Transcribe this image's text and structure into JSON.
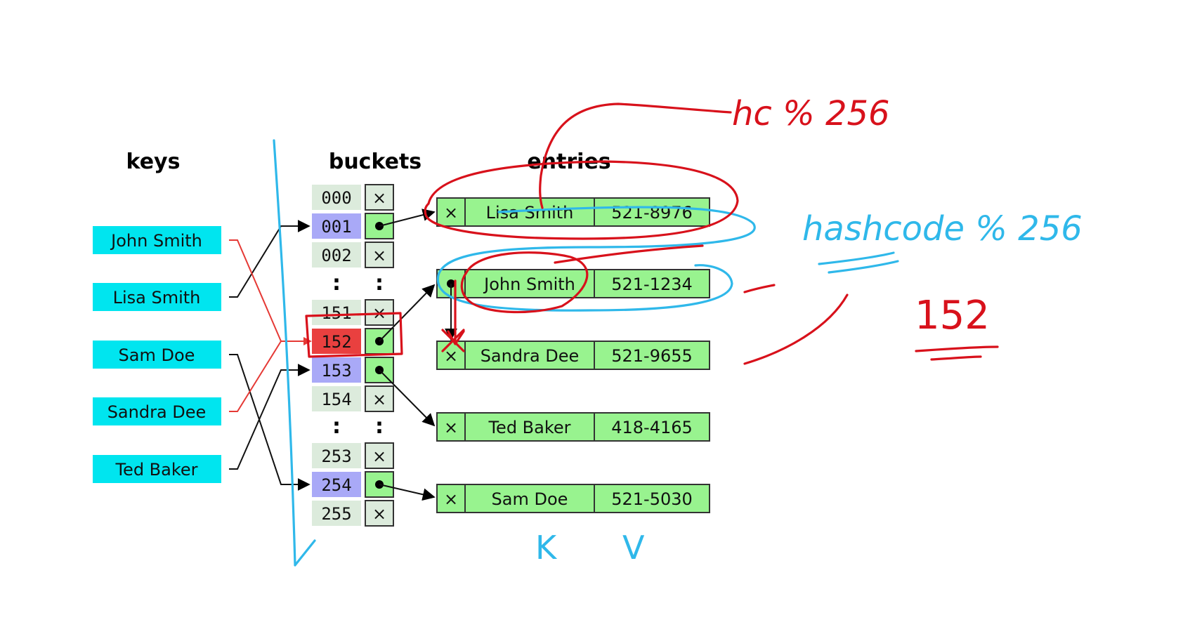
{
  "headers": {
    "keys": "keys",
    "buckets": "buckets",
    "entries": "entries"
  },
  "keys": [
    "John Smith",
    "Lisa Smith",
    "Sam Doe",
    "Sandra Dee",
    "Ted Baker"
  ],
  "buckets": [
    "000",
    "001",
    "002",
    ":",
    "151",
    "152",
    "153",
    "154",
    ":",
    "253",
    "254",
    "255"
  ],
  "entries": [
    {
      "name": "Lisa Smith",
      "phone": "521-8976"
    },
    {
      "name": "John Smith",
      "phone": "521-1234"
    },
    {
      "name": "Sandra Dee",
      "phone": "521-9655"
    },
    {
      "name": "Ted Baker",
      "phone": "418-4165"
    },
    {
      "name": "Sam Doe",
      "phone": "521-5030"
    }
  ],
  "symbols": {
    "null": "×",
    "dots": ":"
  },
  "colors": {
    "key_fill": "#00e5ef",
    "bucket_plain": "#dcebdc",
    "bucket_used": "#a9a9f7",
    "bucket_collision": "#e9403f",
    "entry_fill": "#98f38f",
    "ink_red": "#d8111b",
    "ink_blue": "#2fb8ea"
  },
  "annotations": {
    "red_formula": "hc % 256",
    "blue_formula": "hashcode % 256",
    "result": "152",
    "k_label": "K",
    "v_label": "V"
  }
}
